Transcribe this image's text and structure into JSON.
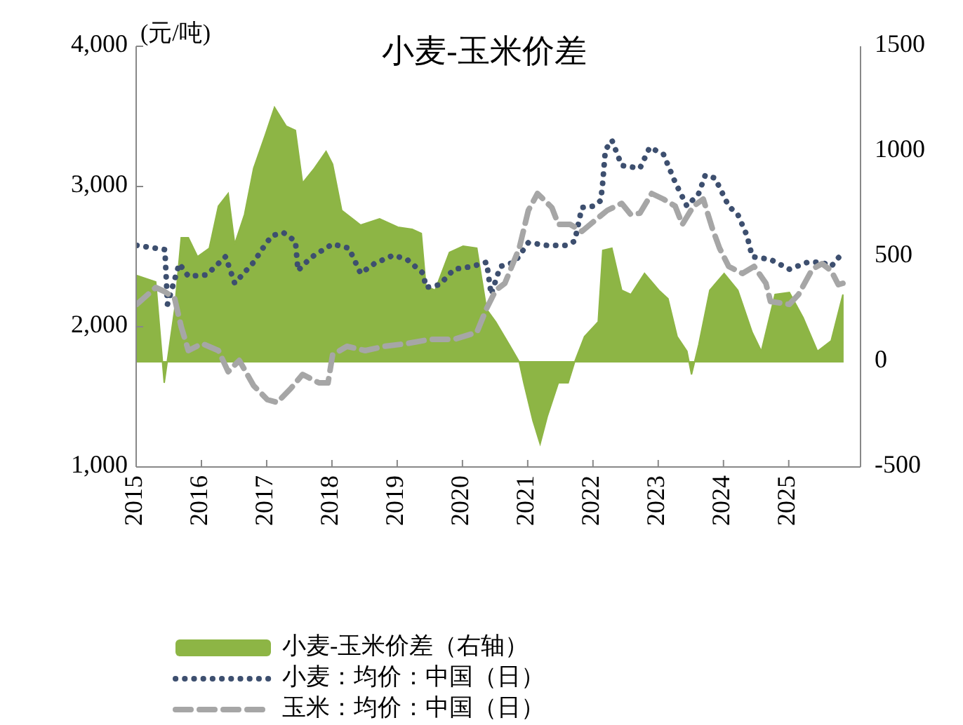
{
  "chart_data": {
    "type": "line",
    "title": "小麦-玉米价差",
    "ylabel": "(元/吨)",
    "legend": "bottom",
    "xlim": [
      2015,
      2026.1
    ],
    "xticks": [
      2015,
      2016,
      2017,
      2018,
      2019,
      2020,
      2021,
      2022,
      2023,
      2024,
      2025
    ],
    "ylim": [
      1000,
      4000
    ],
    "yticks": [
      {
        "value": 1000,
        "label": "1,000"
      },
      {
        "value": 2000,
        "label": "2,000"
      },
      {
        "value": 3000,
        "label": "3,000"
      },
      {
        "value": 4000,
        "label": "4,000"
      }
    ],
    "y2lim": [
      -500,
      1500
    ],
    "y2ticks": [
      -500,
      0,
      500,
      1000,
      1500
    ],
    "series": [
      {
        "name": "小麦-玉米价差（右轴）",
        "type": "area",
        "axis": "y2",
        "color": "#8db545",
        "x": [
          2015.01,
          2015.3,
          2015.43,
          2015.59,
          2015.69,
          2015.8,
          2015.94,
          2016.12,
          2016.26,
          2016.41,
          2016.51,
          2016.66,
          2016.8,
          2016.98,
          2017.12,
          2017.3,
          2017.44,
          2017.55,
          2017.73,
          2017.91,
          2018.01,
          2018.15,
          2018.44,
          2018.73,
          2019.01,
          2019.23,
          2019.37,
          2019.44,
          2019.58,
          2019.8,
          2020.01,
          2020.22,
          2020.37,
          2020.51,
          2020.72,
          2020.87,
          2020.94,
          2021.08,
          2021.19,
          2021.3,
          2021.47,
          2021.62,
          2021.72,
          2021.87,
          2022.08,
          2022.15,
          2022.29,
          2022.44,
          2022.58,
          2022.79,
          2023.01,
          2023.15,
          2023.29,
          2023.44,
          2023.51,
          2023.62,
          2023.79,
          2024.01,
          2024.22,
          2024.44,
          2024.58,
          2024.79,
          2025.01,
          2025.22,
          2025.44,
          2025.65,
          2025.83
        ],
        "values": [
          410,
          380,
          -100,
          250,
          590,
          590,
          500,
          540,
          740,
          800,
          560,
          700,
          920,
          1080,
          1210,
          1120,
          1100,
          850,
          920,
          1000,
          940,
          720,
          650,
          680,
          640,
          630,
          610,
          360,
          340,
          520,
          550,
          540,
          250,
          190,
          80,
          0,
          -100,
          -280,
          -390,
          -260,
          -100,
          -100,
          0,
          120,
          190,
          530,
          540,
          340,
          320,
          420,
          340,
          300,
          120,
          50,
          -60,
          80,
          340,
          420,
          340,
          140,
          50,
          320,
          330,
          210,
          50,
          100,
          320
        ]
      },
      {
        "name": "小麦：均价：中国（日）",
        "line_style": "dotted",
        "color": "#3d4f6f",
        "x": [
          2015.01,
          2015.44,
          2015.48,
          2015.66,
          2015.8,
          2016.08,
          2016.37,
          2016.51,
          2016.8,
          2016.94,
          2017.08,
          2017.26,
          2017.44,
          2017.48,
          2017.58,
          2017.73,
          2018.01,
          2018.26,
          2018.44,
          2018.65,
          2018.94,
          2019.15,
          2019.4,
          2019.44,
          2019.65,
          2019.87,
          2020.15,
          2020.37,
          2020.44,
          2020.58,
          2020.8,
          2021.01,
          2021.3,
          2021.58,
          2021.72,
          2021.83,
          2022.01,
          2022.12,
          2022.15,
          2022.19,
          2022.29,
          2022.44,
          2022.72,
          2022.87,
          2023.08,
          2023.26,
          2023.44,
          2023.62,
          2023.72,
          2023.87,
          2024.08,
          2024.22,
          2024.36,
          2024.44,
          2024.72,
          2025.01,
          2025.29,
          2025.51,
          2025.65,
          2025.83
        ],
        "values": [
          2580,
          2550,
          2160,
          2450,
          2360,
          2370,
          2500,
          2310,
          2460,
          2560,
          2650,
          2670,
          2610,
          2400,
          2450,
          2510,
          2590,
          2560,
          2380,
          2450,
          2510,
          2480,
          2380,
          2280,
          2300,
          2410,
          2430,
          2460,
          2230,
          2430,
          2460,
          2600,
          2580,
          2580,
          2610,
          2850,
          2860,
          2900,
          3030,
          3260,
          3330,
          3150,
          3130,
          3280,
          3230,
          3030,
          2860,
          2950,
          3080,
          3060,
          2860,
          2800,
          2650,
          2500,
          2480,
          2410,
          2460,
          2460,
          2430,
          2530
        ]
      },
      {
        "name": "玉米：均价：中国（日）",
        "line_style": "dashed",
        "color": "#a6a6a6",
        "x": [
          2015.01,
          2015.3,
          2015.44,
          2015.59,
          2015.69,
          2015.8,
          2016.01,
          2016.26,
          2016.41,
          2016.58,
          2016.8,
          2017.01,
          2017.16,
          2017.37,
          2017.55,
          2017.8,
          2017.94,
          2018.01,
          2018.23,
          2018.51,
          2018.8,
          2019.15,
          2019.51,
          2019.87,
          2020.22,
          2020.37,
          2020.51,
          2020.65,
          2020.87,
          2021.01,
          2021.15,
          2021.37,
          2021.47,
          2021.65,
          2021.83,
          2022.01,
          2022.22,
          2022.44,
          2022.58,
          2022.72,
          2022.9,
          2023.08,
          2023.26,
          2023.37,
          2023.54,
          2023.69,
          2023.83,
          2023.94,
          2024.08,
          2024.29,
          2024.47,
          2024.65,
          2024.72,
          2025.01,
          2025.15,
          2025.36,
          2025.51,
          2025.65,
          2025.76,
          2025.83
        ],
        "values": [
          2160,
          2280,
          2250,
          2200,
          2000,
          1830,
          1880,
          1830,
          1680,
          1760,
          1580,
          1480,
          1460,
          1560,
          1660,
          1600,
          1600,
          1800,
          1860,
          1830,
          1860,
          1880,
          1910,
          1910,
          1960,
          2130,
          2260,
          2310,
          2560,
          2830,
          2950,
          2850,
          2730,
          2730,
          2680,
          2750,
          2830,
          2880,
          2800,
          2810,
          2950,
          2910,
          2860,
          2730,
          2860,
          2910,
          2700,
          2560,
          2430,
          2380,
          2430,
          2310,
          2180,
          2160,
          2230,
          2410,
          2450,
          2400,
          2300,
          2310
        ]
      }
    ]
  }
}
